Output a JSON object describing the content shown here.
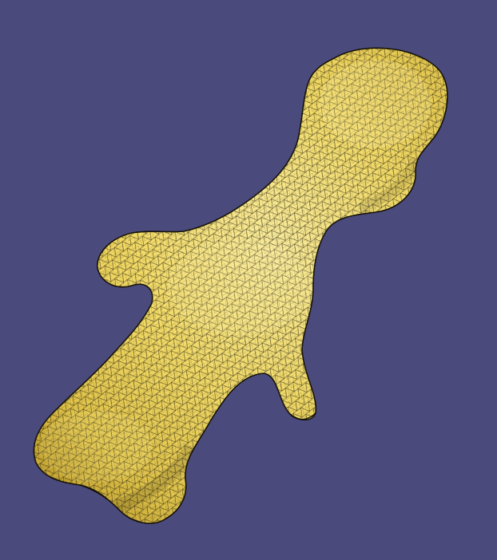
{
  "viewport": {
    "background_color": "#4b4a7c",
    "render_mode": "shaded-with-edges"
  },
  "mesh": {
    "shape": "bone",
    "element_type": "triangle",
    "surface_color": "#f6e25f",
    "edge_color": "#1c1a10"
  }
}
